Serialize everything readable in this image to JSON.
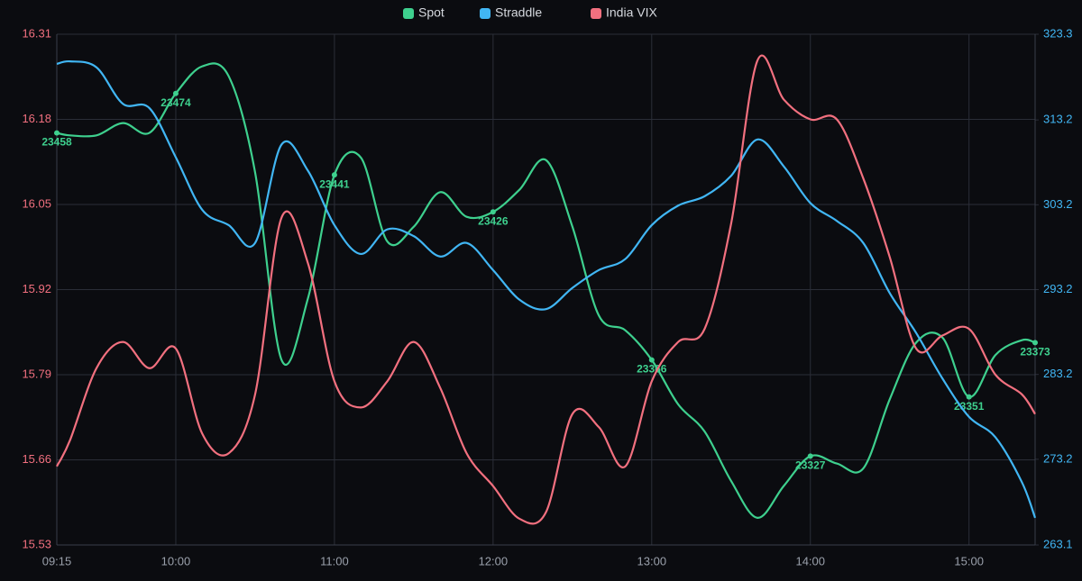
{
  "chart_data": {
    "type": "line",
    "legend": "top",
    "grid": true,
    "x": [
      "09:15",
      "09:20",
      "09:30",
      "09:40",
      "09:50",
      "10:00",
      "10:10",
      "10:20",
      "10:30",
      "10:40",
      "10:50",
      "11:00",
      "11:10",
      "11:20",
      "11:30",
      "11:40",
      "11:50",
      "12:00",
      "12:10",
      "12:20",
      "12:30",
      "12:40",
      "12:50",
      "13:00",
      "13:10",
      "13:20",
      "13:30",
      "13:40",
      "13:50",
      "14:00",
      "14:10",
      "14:20",
      "14:30",
      "14:40",
      "14:50",
      "15:00",
      "15:10",
      "15:20",
      "15:25"
    ],
    "xlim": [
      "09:15",
      "15:25"
    ],
    "xticks": [
      "09:15",
      "10:00",
      "11:00",
      "12:00",
      "13:00",
      "14:00",
      "15:00"
    ],
    "ylim": [
      15.53,
      16.31
    ],
    "yticks": [
      15.53,
      15.66,
      15.79,
      15.92,
      16.05,
      16.18,
      16.31
    ],
    "y2lim": [
      263.1,
      323.3
    ],
    "y2ticks": [
      263.1,
      273.2,
      283.2,
      293.2,
      303.2,
      313.2,
      323.3
    ],
    "y3lim": [
      23291,
      23498
    ],
    "series": [
      {
        "name": "Spot",
        "color": "#3ed08e",
        "axis": "y3",
        "values": [
          23458,
          23457,
          23457,
          23462,
          23458,
          23474,
          23485,
          23481,
          23442,
          23366,
          23391,
          23441,
          23448,
          23414,
          23420,
          23434,
          23424,
          23426,
          23435,
          23447,
          23420,
          23384,
          23378,
          23366,
          23348,
          23337,
          23317,
          23302,
          23315,
          23327,
          23324,
          23322,
          23350,
          23373,
          23375,
          23351,
          23368,
          23374,
          23373
        ]
      },
      {
        "name": "Straddle",
        "color": "#41b6f4",
        "axis": "y2",
        "values": [
          319.8,
          320.1,
          319.4,
          315.1,
          314.6,
          308.8,
          302.6,
          300.8,
          298.7,
          310.3,
          307.2,
          300.8,
          297.4,
          300.3,
          299.5,
          297.1,
          298.7,
          295.5,
          292.0,
          290.9,
          293.4,
          295.5,
          296.8,
          300.8,
          303.1,
          304.2,
          306.6,
          310.9,
          307.7,
          303.4,
          301.3,
          298.7,
          292.8,
          288.1,
          282.7,
          278.2,
          275.8,
          270.5,
          266.3
        ]
      },
      {
        "name": "India VIX",
        "color": "#f2707f",
        "values": [
          15.65,
          15.69,
          15.8,
          15.84,
          15.8,
          15.83,
          15.7,
          15.67,
          15.76,
          16.03,
          15.96,
          15.78,
          15.74,
          15.78,
          15.84,
          15.77,
          15.67,
          15.62,
          15.57,
          15.58,
          15.73,
          15.71,
          15.65,
          15.78,
          15.84,
          15.86,
          16.02,
          16.27,
          16.21,
          16.18,
          16.18,
          16.09,
          15.97,
          15.83,
          15.85,
          15.86,
          15.79,
          15.76,
          15.73
        ]
      }
    ]
  }
}
